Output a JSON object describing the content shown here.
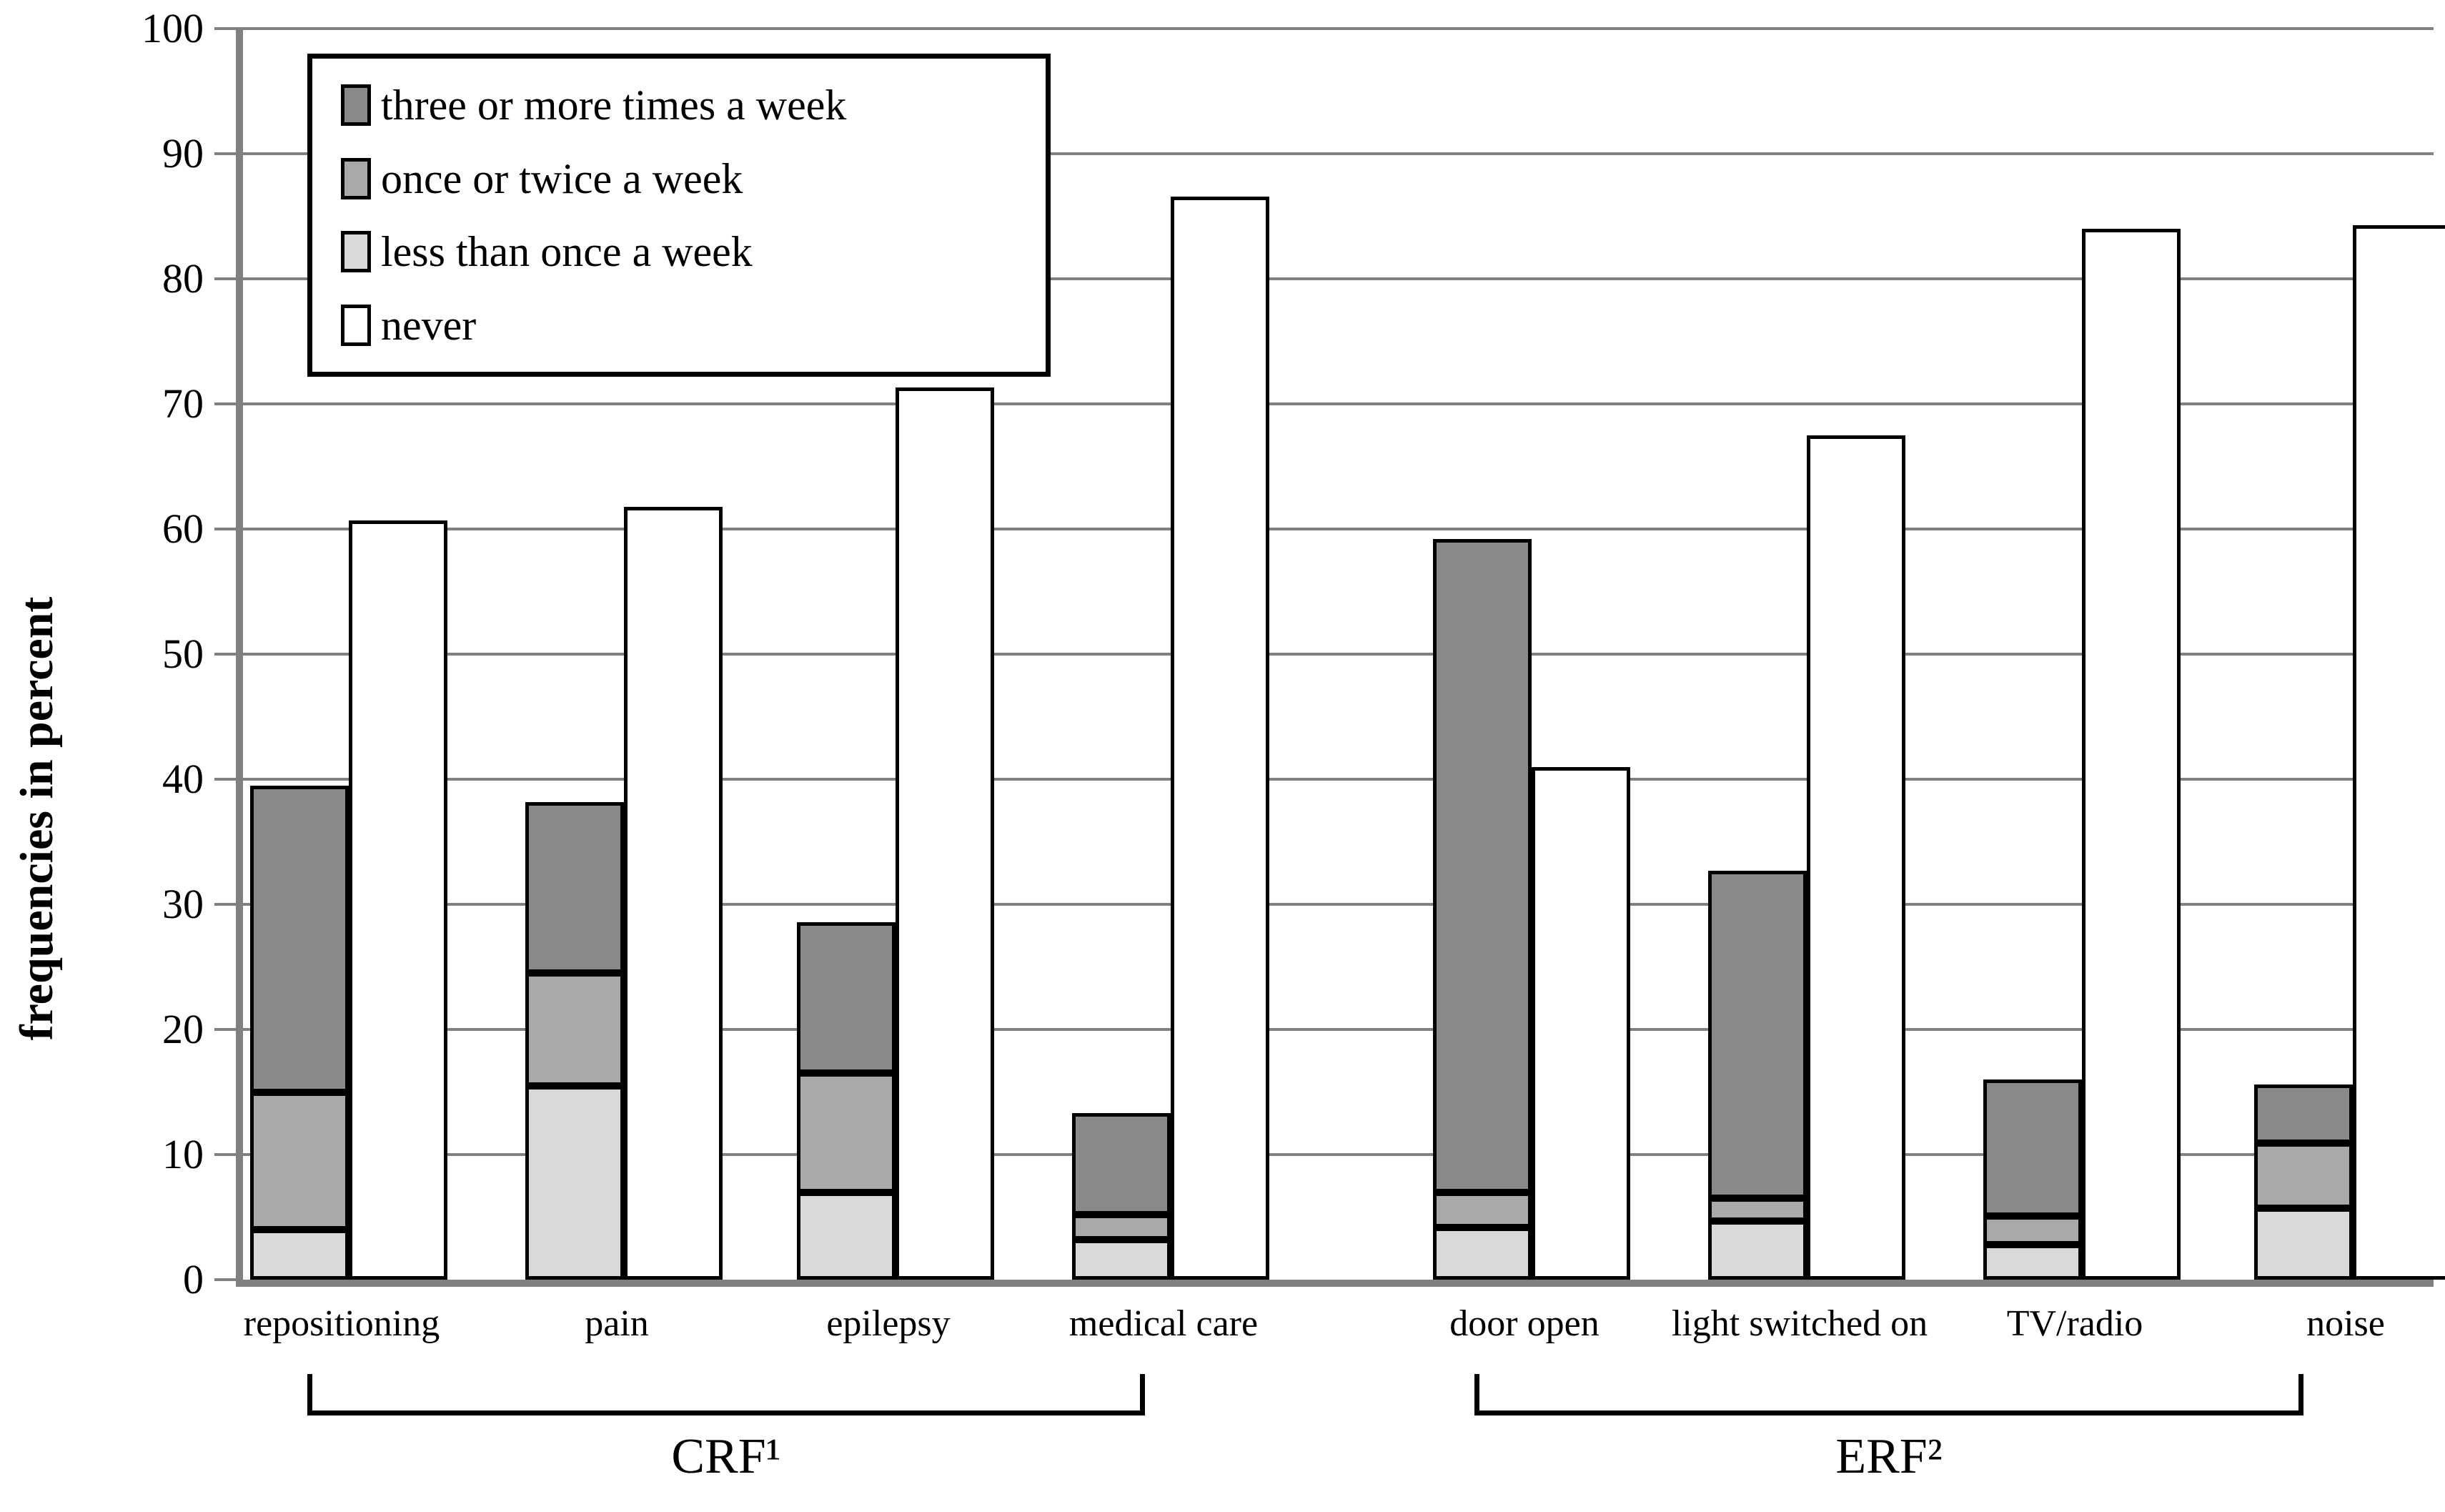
{
  "chart_data": {
    "type": "bar",
    "variant": "stacked-with-companion-bar",
    "title": "",
    "xlabel": "",
    "ylabel": "frequencies in percent",
    "ylim": [
      0,
      100
    ],
    "ytick_step": 10,
    "yticks": [
      0,
      10,
      20,
      30,
      40,
      50,
      60,
      70,
      80,
      90,
      100
    ],
    "grid": "horizontal",
    "legend_position": "top-left-inside",
    "legend": [
      {
        "key": "three",
        "label": "three or more times a week",
        "color": "#898989"
      },
      {
        "key": "once",
        "label": "once or twice a week",
        "color": "#a9a9a9"
      },
      {
        "key": "less",
        "label": "less than once a week",
        "color": "#d9d9d9"
      },
      {
        "key": "never",
        "label": "never",
        "color": "#ffffff"
      }
    ],
    "categories": [
      {
        "label": "repositioning",
        "group": "CRF¹",
        "less": 4.0,
        "once": 11.0,
        "three": 24.5,
        "stack_top": 39.5,
        "never": 60.7
      },
      {
        "label": "pain",
        "group": "CRF¹",
        "less": 15.5,
        "once": 9.0,
        "three": 13.7,
        "stack_top": 38.2,
        "never": 61.8
      },
      {
        "label": "epilepsy",
        "group": "CRF¹",
        "less": 7.0,
        "once": 9.5,
        "three": 12.1,
        "stack_top": 28.6,
        "never": 71.3
      },
      {
        "label": "medical care",
        "group": "CRF¹",
        "less": 3.2,
        "once": 2.0,
        "three": 8.1,
        "stack_top": 13.3,
        "never": 86.6
      },
      {
        "label": "door open",
        "group": "ERF²",
        "less": 4.2,
        "once": 2.8,
        "three": 52.2,
        "stack_top": 59.2,
        "never": 41.0
      },
      {
        "label": "light switched on",
        "group": "ERF²",
        "less": 4.7,
        "once": 1.8,
        "three": 26.2,
        "stack_top": 32.7,
        "never": 67.5
      },
      {
        "label": "TV/radio",
        "group": "ERF²",
        "less": 2.8,
        "once": 2.3,
        "three": 10.9,
        "stack_top": 16.0,
        "never": 84.0
      },
      {
        "label": "noise",
        "group": "ERF²",
        "less": 5.7,
        "once": 5.2,
        "three": 4.7,
        "stack_top": 15.6,
        "never": 84.3
      }
    ],
    "groups": [
      {
        "label": "CRF¹",
        "members": [
          "repositioning",
          "pain",
          "epilepsy",
          "medical care"
        ]
      },
      {
        "label": "ERF²",
        "members": [
          "door open",
          "light switched on",
          "TV/radio",
          "noise"
        ]
      }
    ],
    "colors": {
      "axis": "#808080",
      "gridline": "#808080",
      "bar_border": "#000000",
      "background": "#ffffff"
    }
  }
}
